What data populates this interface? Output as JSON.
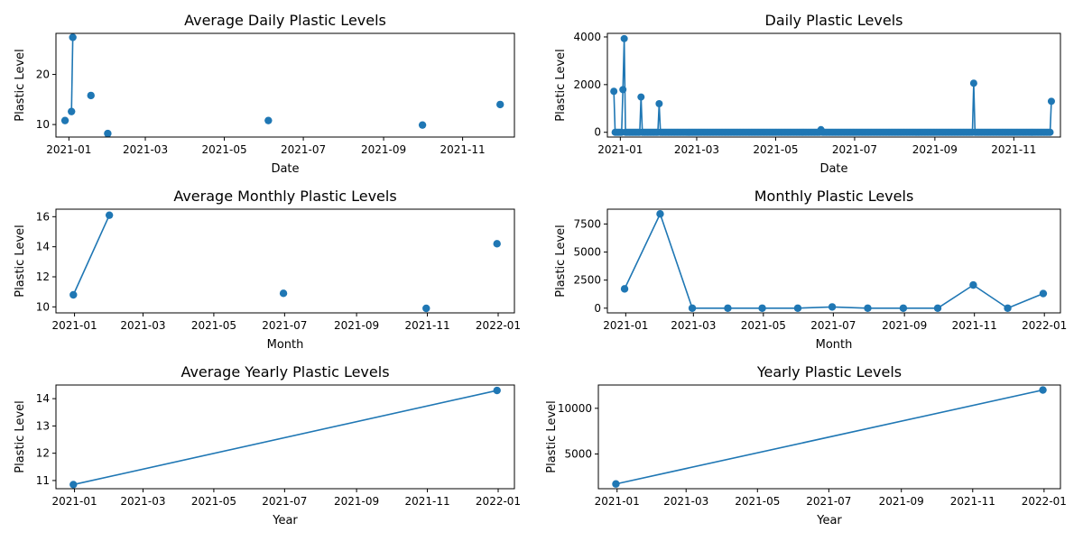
{
  "chart_data": [
    {
      "type": "line",
      "title": "Average Daily Plastic Levels",
      "xlabel": "Date",
      "ylabel": "Plastic Level",
      "x_type": "date",
      "xlim": [
        "2020-12-22",
        "2021-12-11"
      ],
      "ylim": [
        7.5,
        28.2
      ],
      "xticks": [
        "2021-01",
        "2021-03",
        "2021-05",
        "2021-07",
        "2021-09",
        "2021-11"
      ],
      "yticks": [
        10,
        20
      ],
      "series": [
        {
          "x": [
            "2020-12-29",
            "2021-01-03",
            "2021-01-04",
            "2021-01-18",
            "2021-01-31",
            "2021-06-04",
            "2021-10-01",
            "2021-11-30"
          ],
          "values": [
            10.8,
            12.6,
            27.4,
            15.8,
            8.2,
            10.8,
            9.9,
            14.0
          ],
          "connect": [
            [
              1,
              2
            ]
          ]
        }
      ]
    },
    {
      "type": "line",
      "title": "Daily Plastic Levels",
      "xlabel": "Date",
      "ylabel": "Plastic Level",
      "x_type": "date",
      "xlim": [
        "2020-12-22",
        "2021-12-07"
      ],
      "ylim": [
        -200,
        4150
      ],
      "xticks": [
        "2021-01",
        "2021-03",
        "2021-05",
        "2021-07",
        "2021-09",
        "2021-11"
      ],
      "yticks": [
        0,
        2000,
        4000
      ],
      "series": [
        {
          "x_range": [
            "2020-12-27",
            "2021-11-30"
          ],
          "baseline": 0,
          "spikes": [
            {
              "x": "2020-12-27",
              "value": 1720
            },
            {
              "x": "2021-01-03",
              "value": 1790
            },
            {
              "x": "2021-01-04",
              "value": 3930
            },
            {
              "x": "2021-01-17",
              "value": 1480
            },
            {
              "x": "2021-01-31",
              "value": 1200
            },
            {
              "x": "2021-06-05",
              "value": 110
            },
            {
              "x": "2021-10-01",
              "value": 2060
            },
            {
              "x": "2021-11-30",
              "value": 1300
            }
          ]
        }
      ]
    },
    {
      "type": "line",
      "title": "Average Monthly Plastic Levels",
      "xlabel": "Month",
      "ylabel": "Plastic Level",
      "x_type": "date",
      "xlim": [
        "2020-12-16",
        "2022-01-15"
      ],
      "ylim": [
        9.6,
        16.5
      ],
      "xticks": [
        "2021-01",
        "2021-03",
        "2021-05",
        "2021-07",
        "2021-09",
        "2021-11",
        "2022-01"
      ],
      "yticks": [
        10,
        12,
        14,
        16
      ],
      "series": [
        {
          "x": [
            "2020-12-31",
            "2021-01-31",
            "2021-06-30",
            "2021-10-31",
            "2021-12-31"
          ],
          "values": [
            10.8,
            16.1,
            10.9,
            9.9,
            14.2
          ],
          "connect": [
            [
              0,
              1
            ]
          ]
        }
      ]
    },
    {
      "type": "line",
      "title": "Monthly Plastic Levels",
      "xlabel": "Month",
      "ylabel": "Plastic Level",
      "x_type": "date",
      "xlim": [
        "2020-12-16",
        "2022-01-15"
      ],
      "ylim": [
        -420,
        8820
      ],
      "xticks": [
        "2021-01",
        "2021-03",
        "2021-05",
        "2021-07",
        "2021-09",
        "2021-11",
        "2022-01"
      ],
      "yticks": [
        0,
        2500,
        5000,
        7500
      ],
      "series": [
        {
          "x": [
            "2020-12-31",
            "2021-01-31",
            "2021-02-28",
            "2021-03-31",
            "2021-04-30",
            "2021-05-31",
            "2021-06-30",
            "2021-07-31",
            "2021-08-31",
            "2021-09-30",
            "2021-10-31",
            "2021-11-30",
            "2021-12-31"
          ],
          "values": [
            1720,
            8400,
            0,
            0,
            0,
            0,
            110,
            0,
            0,
            0,
            2060,
            0,
            1300
          ],
          "connect": "all"
        }
      ]
    },
    {
      "type": "line",
      "title": "Average Yearly Plastic Levels",
      "xlabel": "Year",
      "ylabel": "Plastic Level",
      "x_type": "date",
      "xlim": [
        "2020-12-16",
        "2022-01-15"
      ],
      "ylim": [
        10.7,
        14.5
      ],
      "xticks": [
        "2021-01",
        "2021-03",
        "2021-05",
        "2021-07",
        "2021-09",
        "2021-11",
        "2022-01"
      ],
      "yticks": [
        11,
        12,
        13,
        14
      ],
      "series": [
        {
          "x": [
            "2020-12-31",
            "2021-12-31"
          ],
          "values": [
            10.85,
            14.3
          ],
          "connect": "all"
        }
      ]
    },
    {
      "type": "line",
      "title": "Yearly Plastic Levels",
      "xlabel": "Year",
      "ylabel": "Plastic Level",
      "x_type": "date",
      "xlim": [
        "2020-12-16",
        "2022-01-15"
      ],
      "ylim": [
        1200,
        12550
      ],
      "xticks": [
        "2021-01",
        "2021-03",
        "2021-05",
        "2021-07",
        "2021-09",
        "2021-11",
        "2022-01"
      ],
      "yticks": [
        5000,
        10000
      ],
      "series": [
        {
          "x": [
            "2020-12-31",
            "2021-12-31"
          ],
          "values": [
            1720,
            12000
          ],
          "connect": "all"
        }
      ]
    }
  ],
  "colors": {
    "series": "#1f77b4"
  }
}
